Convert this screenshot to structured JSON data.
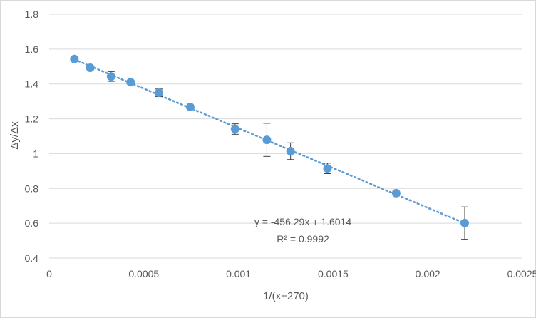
{
  "chart_data": {
    "type": "scatter",
    "xlabel": "1/(x+270)",
    "ylabel": "Δy/Δx",
    "xlim": [
      0,
      0.0025
    ],
    "ylim": [
      0.4,
      1.8
    ],
    "x_ticks": [
      0,
      0.0005,
      0.001,
      0.0015,
      0.002,
      0.0025
    ],
    "x_tick_labels": [
      "0",
      "0.0005",
      "0.001",
      "0.0015",
      "0.002",
      "0.0025"
    ],
    "y_ticks": [
      0.4,
      0.6,
      0.8,
      1.0,
      1.2,
      1.4,
      1.6,
      1.8
    ],
    "y_tick_labels": [
      "0.4",
      "0.6",
      "0.8",
      "1",
      "1.2",
      "1.4",
      "1.6",
      "1.8"
    ],
    "grid": "horizontal",
    "marker_color": "#5b9bd5",
    "trendline_color": "#5b9bd5",
    "points": [
      {
        "x": 0.000133,
        "y": 1.543,
        "err": 0.012
      },
      {
        "x": 0.000217,
        "y": 1.493,
        "err": 0.008
      },
      {
        "x": 0.000327,
        "y": 1.443,
        "err": 0.028
      },
      {
        "x": 0.00043,
        "y": 1.41,
        "err": 0.008
      },
      {
        "x": 0.00058,
        "y": 1.349,
        "err": 0.022
      },
      {
        "x": 0.000745,
        "y": 1.268,
        "err": 0.008
      },
      {
        "x": 0.000982,
        "y": 1.141,
        "err": 0.03
      },
      {
        "x": 0.00115,
        "y": 1.079,
        "err": 0.095
      },
      {
        "x": 0.001275,
        "y": 1.014,
        "err": 0.048
      },
      {
        "x": 0.00147,
        "y": 0.915,
        "err": 0.03
      },
      {
        "x": 0.001833,
        "y": 0.773,
        "err": 0.008
      },
      {
        "x": 0.002195,
        "y": 0.601,
        "err": 0.093
      }
    ],
    "trendline": {
      "slope": -456.29,
      "intercept": 1.6014,
      "x_range": [
        0.000133,
        0.002195
      ],
      "equation": "y = -456.29x + 1.6014",
      "r_squared": "R² = 0.9992"
    }
  }
}
